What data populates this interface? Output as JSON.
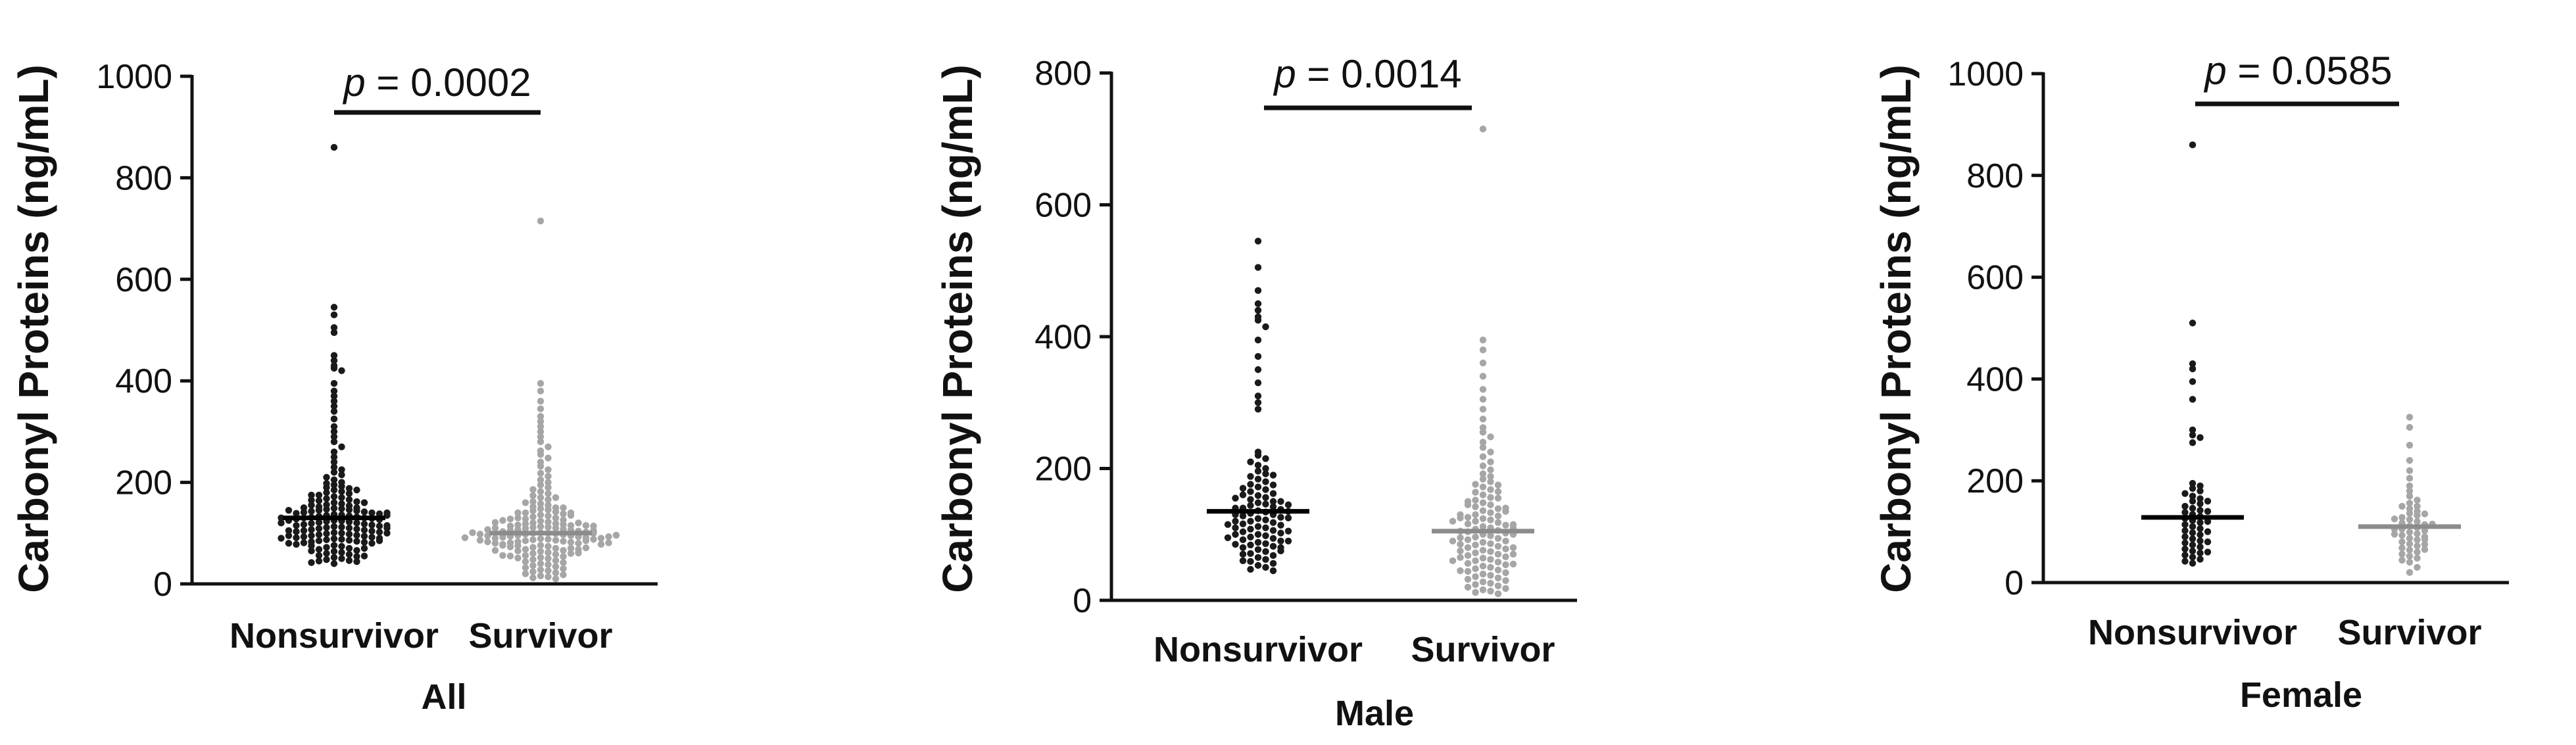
{
  "panels": [
    {
      "id": "all",
      "ylabel": "Carbonyl Proteins  (ng/mL)",
      "xlabel": "All",
      "pvalue_label": "p = 0.0002",
      "p_symbol": "p",
      "p_rest": " = 0.0002",
      "ytick_labels": [
        "0",
        "200",
        "400",
        "600",
        "800",
        "1000"
      ]
    },
    {
      "id": "male",
      "ylabel": "Carbonyl Proteins (ng/mL)",
      "xlabel": "Male",
      "pvalue_label": "p = 0.0014",
      "p_symbol": "p",
      "p_rest": " = 0.0014",
      "ytick_labels": [
        "0",
        "200",
        "400",
        "600",
        "800"
      ]
    },
    {
      "id": "female",
      "ylabel": "Carbonyl Proteins (ng/mL)",
      "xlabel": "Female",
      "pvalue_label": "p = 0.0585",
      "p_symbol": "p",
      "p_rest": " = 0.0585",
      "ytick_labels": [
        "0",
        "200",
        "400",
        "600",
        "800",
        "1000"
      ]
    }
  ],
  "chart_data": [
    {
      "type": "scatter",
      "chart_style": "dot plot with median line",
      "xlabel": "All",
      "ylabel": "Carbonyl Proteins  (ng/mL)",
      "categories": [
        "Nonsurvivor",
        "Survivor"
      ],
      "ylim": [
        0,
        1000
      ],
      "yticks": [
        0,
        200,
        400,
        600,
        800,
        1000
      ],
      "colors": {
        "Nonsurvivor": "#1a1a1a",
        "Survivor": "#a6a6a6"
      },
      "annotation": "p = 0.0002",
      "series": [
        {
          "name": "Nonsurvivor",
          "median": 130,
          "values": [
            860,
            545,
            530,
            505,
            495,
            450,
            440,
            430,
            425,
            420,
            395,
            380,
            370,
            360,
            350,
            340,
            325,
            310,
            300,
            290,
            280,
            270,
            260,
            250,
            240,
            230,
            225,
            220,
            215,
            210,
            205,
            200,
            198,
            195,
            192,
            190,
            188,
            185,
            182,
            180,
            178,
            175,
            172,
            170,
            168,
            166,
            164,
            162,
            160,
            158,
            156,
            154,
            152,
            150,
            149,
            148,
            147,
            146,
            145,
            144,
            143,
            142,
            141,
            140,
            139,
            138,
            137,
            136,
            135,
            134,
            133,
            132,
            131,
            130,
            130,
            129,
            128,
            127,
            126,
            125,
            124,
            123,
            122,
            121,
            120,
            119,
            118,
            117,
            116,
            115,
            114,
            113,
            112,
            111,
            110,
            109,
            108,
            107,
            106,
            105,
            104,
            103,
            102,
            101,
            100,
            99,
            98,
            97,
            96,
            95,
            94,
            93,
            92,
            91,
            90,
            89,
            88,
            87,
            86,
            85,
            84,
            83,
            82,
            81,
            80,
            78,
            76,
            74,
            72,
            70,
            68,
            66,
            64,
            62,
            60,
            58,
            56,
            54,
            52,
            50,
            48,
            46,
            45,
            44,
            42,
            40,
            185,
            175,
            165,
            155,
            145,
            135,
            125,
            115,
            105,
            95,
            85,
            75,
            65,
            55,
            160,
            150,
            140,
            130,
            120,
            110,
            100,
            90,
            80,
            70
          ]
        },
        {
          "name": "Survivor",
          "median": 100,
          "values": [
            715,
            395,
            380,
            360,
            345,
            330,
            320,
            310,
            300,
            290,
            280,
            270,
            262,
            255,
            248,
            240,
            232,
            225,
            218,
            212,
            205,
            200,
            195,
            190,
            186,
            182,
            178,
            174,
            170,
            166,
            162,
            158,
            155,
            152,
            150,
            148,
            146,
            144,
            142,
            140,
            138,
            136,
            134,
            132,
            130,
            128,
            126,
            124,
            122,
            120,
            119,
            118,
            117,
            116,
            115,
            114,
            113,
            112,
            111,
            110,
            109,
            108,
            107,
            106,
            105,
            104,
            103,
            102,
            101,
            100,
            100,
            99,
            98,
            97,
            96,
            95,
            94,
            93,
            92,
            91,
            90,
            89,
            88,
            87,
            86,
            85,
            84,
            83,
            82,
            81,
            80,
            78,
            76,
            74,
            72,
            70,
            68,
            66,
            64,
            62,
            60,
            58,
            56,
            54,
            52,
            50,
            48,
            46,
            44,
            42,
            40,
            38,
            36,
            34,
            32,
            30,
            28,
            26,
            24,
            22,
            20,
            18,
            16,
            14,
            12,
            10,
            170,
            160,
            150,
            140,
            130,
            120,
            110,
            100,
            95,
            90,
            85,
            80,
            75,
            70,
            65,
            60,
            55,
            125,
            115,
            105,
            98,
            93,
            88,
            83,
            78,
            73,
            68,
            140,
            135,
            128,
            121,
            114,
            107,
            101,
            96,
            91,
            86,
            81,
            76,
            71,
            66,
            61,
            56,
            51
          ]
        }
      ]
    },
    {
      "type": "scatter",
      "chart_style": "dot plot with median line",
      "xlabel": "Male",
      "ylabel": "Carbonyl Proteins (ng/mL)",
      "categories": [
        "Nonsurvivor",
        "Survivor"
      ],
      "ylim": [
        0,
        800
      ],
      "yticks": [
        0,
        200,
        400,
        600,
        800
      ],
      "colors": {
        "Nonsurvivor": "#1a1a1a",
        "Survivor": "#a6a6a6"
      },
      "annotation": "p = 0.0014",
      "series": [
        {
          "name": "Nonsurvivor",
          "median": 135,
          "values": [
            545,
            505,
            470,
            450,
            440,
            430,
            425,
            415,
            395,
            370,
            350,
            330,
            310,
            300,
            290,
            225,
            220,
            215,
            210,
            205,
            200,
            196,
            192,
            188,
            184,
            180,
            176,
            172,
            168,
            165,
            162,
            159,
            156,
            153,
            150,
            148,
            146,
            144,
            142,
            140,
            138,
            136,
            134,
            132,
            130,
            128,
            126,
            124,
            122,
            120,
            118,
            116,
            114,
            112,
            110,
            108,
            106,
            104,
            102,
            100,
            98,
            96,
            94,
            92,
            90,
            88,
            86,
            84,
            82,
            80,
            77,
            74,
            71,
            68,
            65,
            62,
            59,
            56,
            53,
            50,
            47,
            45,
            190,
            175,
            160,
            150,
            140,
            130,
            120,
            110,
            100,
            90,
            80,
            70,
            60,
            170,
            155,
            145,
            135,
            125,
            115,
            105,
            95,
            85,
            75
          ]
        },
        {
          "name": "Survivor",
          "median": 105,
          "values": [
            715,
            395,
            380,
            360,
            340,
            320,
            305,
            290,
            275,
            262,
            255,
            248,
            240,
            232,
            225,
            218,
            210,
            204,
            198,
            192,
            188,
            184,
            180,
            176,
            172,
            168,
            164,
            160,
            156,
            152,
            148,
            145,
            142,
            139,
            136,
            133,
            130,
            128,
            126,
            124,
            122,
            120,
            118,
            116,
            114,
            112,
            110,
            108,
            106,
            104,
            102,
            100,
            98,
            96,
            94,
            92,
            90,
            88,
            86,
            84,
            82,
            80,
            78,
            76,
            74,
            72,
            70,
            68,
            66,
            64,
            62,
            60,
            58,
            56,
            54,
            52,
            50,
            48,
            46,
            44,
            42,
            40,
            38,
            36,
            34,
            32,
            30,
            28,
            26,
            24,
            22,
            20,
            18,
            16,
            14,
            12,
            10,
            175,
            165,
            155,
            145,
            135,
            125,
            115,
            105,
            95,
            85,
            75,
            65,
            55,
            45,
            150,
            140,
            130,
            120,
            110,
            100,
            90,
            80,
            70,
            60
          ]
        }
      ]
    },
    {
      "type": "scatter",
      "chart_style": "dot plot with median line",
      "xlabel": "Female",
      "ylabel": "Carbonyl Proteins (ng/mL)",
      "categories": [
        "Nonsurvivor",
        "Survivor"
      ],
      "ylim": [
        0,
        1000
      ],
      "yticks": [
        0,
        200,
        400,
        600,
        800,
        1000
      ],
      "colors": {
        "Nonsurvivor": "#1a1a1a",
        "Survivor": "#a6a6a6"
      },
      "annotation": "p = 0.0585",
      "series": [
        {
          "name": "Nonsurvivor",
          "median": 128,
          "values": [
            860,
            510,
            430,
            420,
            395,
            360,
            300,
            290,
            285,
            275,
            195,
            190,
            185,
            180,
            175,
            170,
            165,
            160,
            155,
            150,
            146,
            142,
            138,
            134,
            130,
            126,
            122,
            118,
            114,
            110,
            106,
            102,
            98,
            94,
            90,
            86,
            82,
            78,
            74,
            70,
            66,
            62,
            58,
            54,
            50,
            46,
            42,
            38,
            160,
            140,
            120,
            100,
            80,
            60
          ]
        },
        {
          "name": "Survivor",
          "median": 110,
          "values": [
            325,
            305,
            270,
            240,
            220,
            205,
            190,
            180,
            170,
            162,
            156,
            150,
            145,
            140,
            136,
            132,
            128,
            124,
            120,
            117,
            114,
            111,
            108,
            105,
            102,
            99,
            96,
            93,
            90,
            87,
            84,
            80,
            76,
            72,
            68,
            64,
            60,
            56,
            52,
            48,
            44,
            40,
            30,
            20,
            150,
            135,
            125,
            115,
            105,
            95,
            85,
            75,
            65
          ]
        }
      ]
    }
  ]
}
